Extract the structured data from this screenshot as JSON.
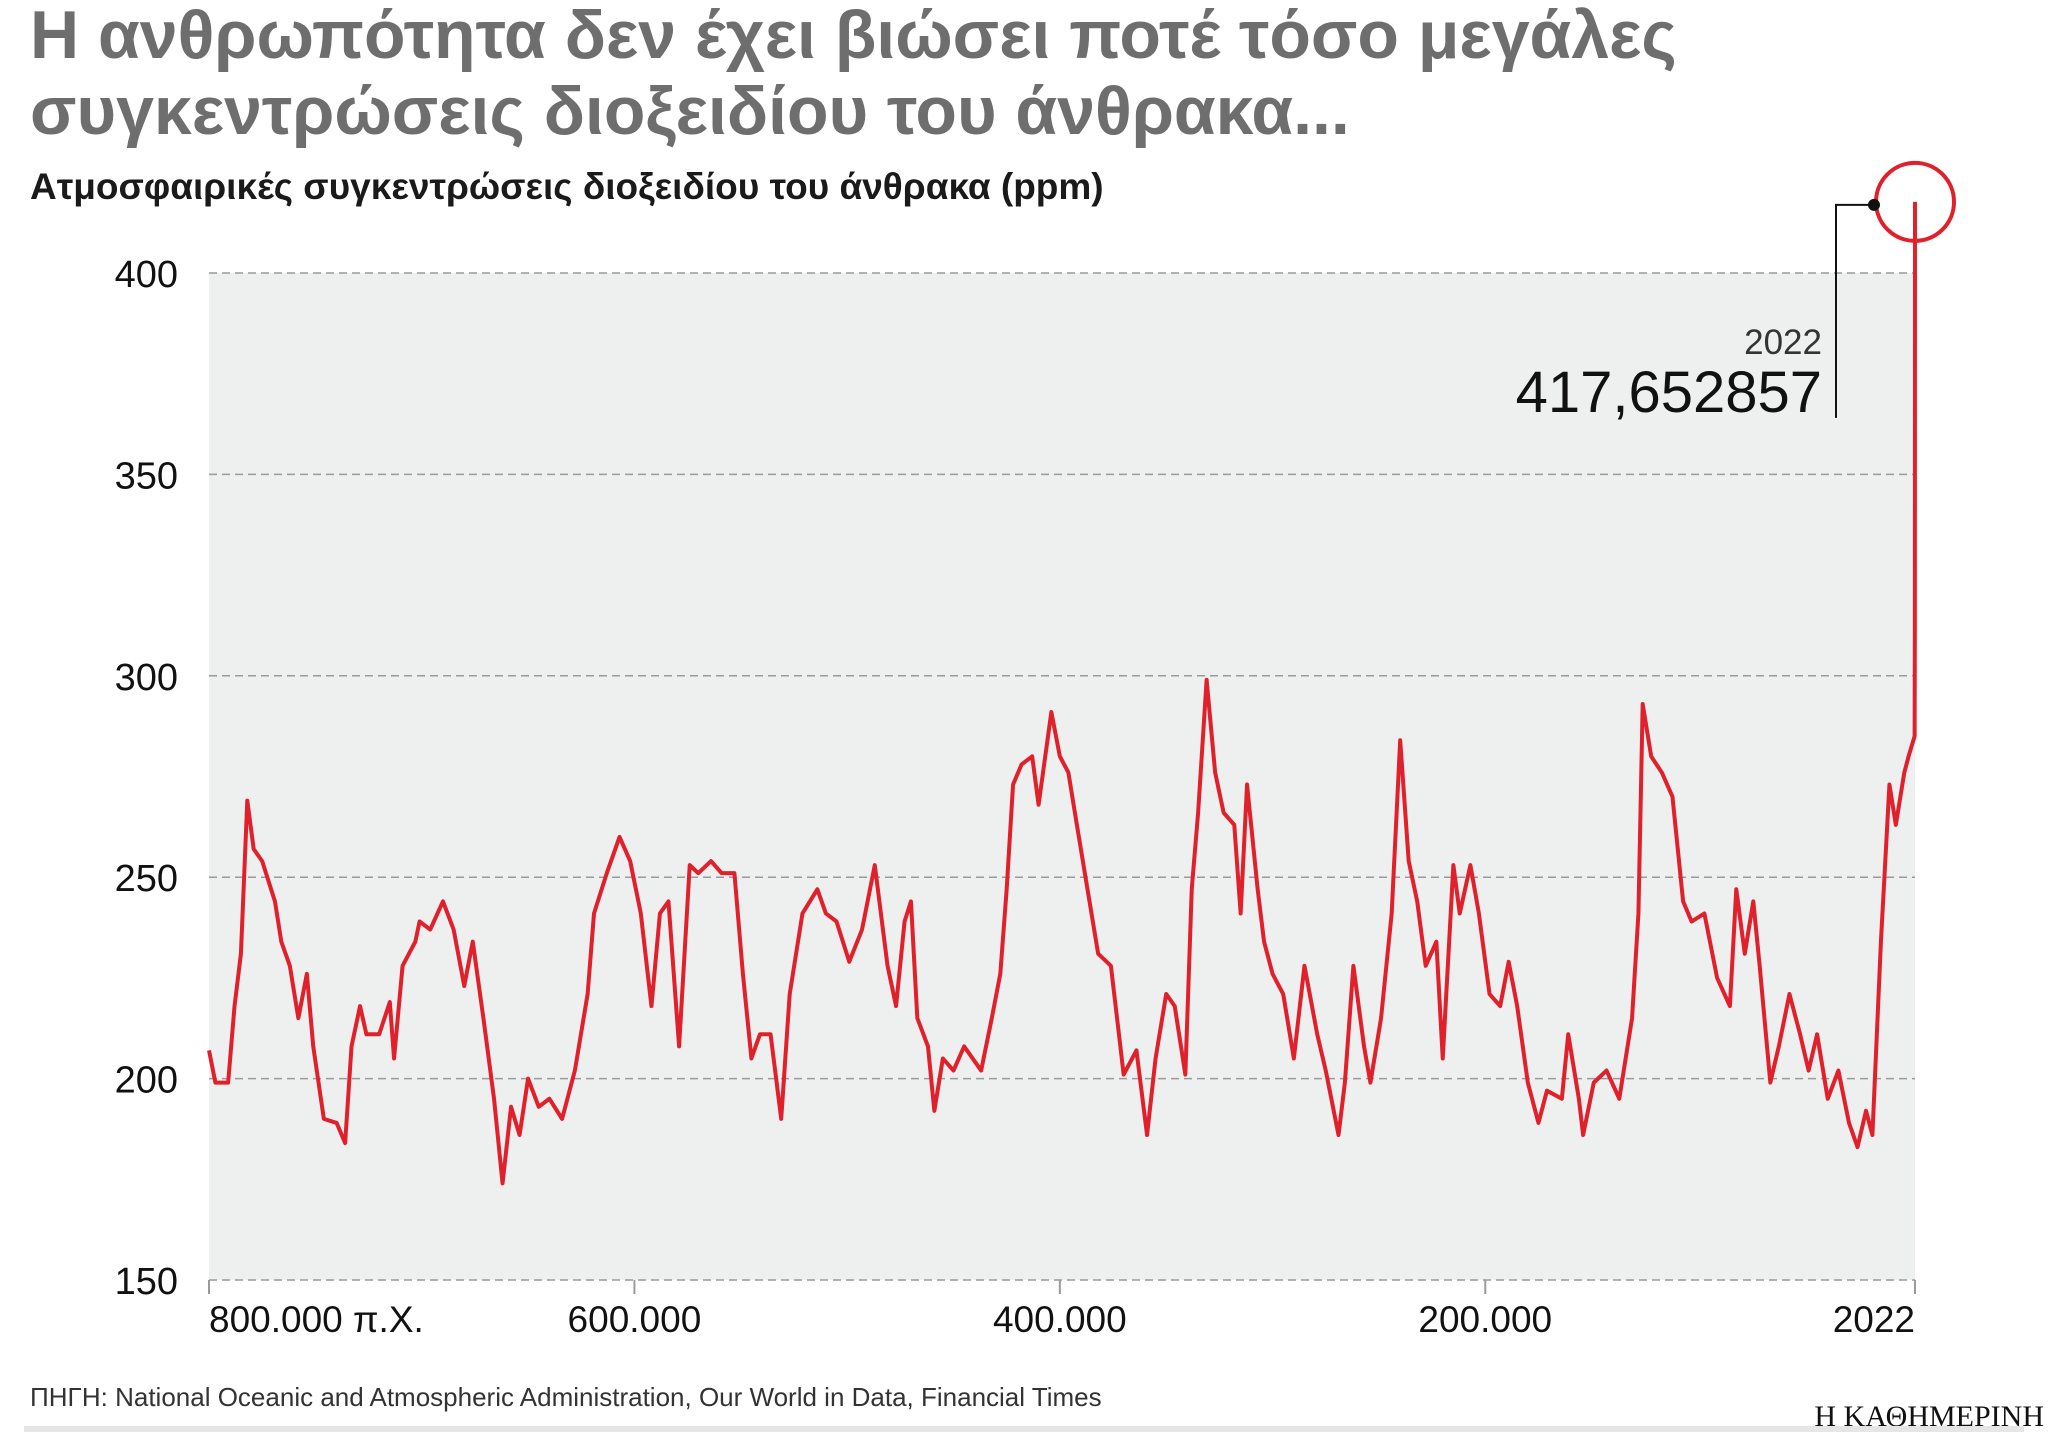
{
  "chart_data": {
    "type": "line",
    "title": [
      "Η ανθρωπότητα δεν έχει βιώσει ποτέ τόσο μεγάλες",
      "συγκεντρώσεις διοξειδίου του άνθρακα..."
    ],
    "subtitle": "Ατμοσφαιρικές συγκεντρώσεις διοξειδίου του άνθρακα (ppm)",
    "source": "ΠΗΓΗ: National Oceanic and Atmospheric Administration, Our World in Data, Financial Times",
    "brand": "Η ΚΑΘΗΜΕΡΙΝΗ",
    "color": "#e0202a",
    "grid": true,
    "xlim": [
      -800000,
      2022
    ],
    "ylim": [
      150,
      400
    ],
    "xticks": [
      {
        "value": -800000,
        "label": "800.000 π.Χ."
      },
      {
        "value": -600000,
        "label": "600.000"
      },
      {
        "value": -400000,
        "label": "400.000"
      },
      {
        "value": -200000,
        "label": "200.000"
      },
      2022
    ],
    "yticks": [
      150,
      200,
      250,
      300,
      350,
      400
    ],
    "annotation": {
      "x": 2022,
      "y": 417.652857,
      "label_top": "2022",
      "label": "417,652857"
    },
    "x": [
      -800000,
      -797000,
      -791000,
      -788000,
      -785000,
      -782000,
      -779000,
      -775000,
      -769000,
      -766000,
      -762000,
      -758000,
      -754000,
      -751000,
      -746000,
      -740000,
      -736000,
      -733000,
      -729000,
      -726000,
      -720000,
      -715000,
      -713000,
      -709000,
      -703000,
      -701000,
      -696000,
      -690000,
      -685000,
      -680000,
      -676000,
      -671000,
      -666000,
      -662000,
      -658000,
      -654000,
      -650000,
      -645000,
      -640000,
      -634000,
      -628000,
      -622000,
      -619000,
      -613000,
      -607000,
      -602000,
      -597000,
      -592000,
      -588000,
      -584000,
      -579000,
      -574000,
      -570000,
      -564000,
      -559000,
      -553000,
      -549000,
      -545000,
      -541000,
      -536000,
      -531000,
      -527000,
      -521000,
      -514000,
      -510000,
      -505000,
      -499000,
      -493000,
      -487000,
      -481000,
      -477000,
      -473000,
      -470000,
      -467000,
      -462000,
      -459000,
      -455000,
      -450000,
      -445000,
      -441000,
      -437000,
      -432000,
      -428000,
      -425000,
      -422000,
      -418000,
      -413000,
      -410000,
      -404000,
      -400000,
      -396000,
      -392000,
      -387000,
      -382000,
      -376000,
      -370000,
      -364000,
      -359000,
      -355000,
      -350000,
      -346000,
      -341000,
      -338000,
      -335000,
      -331000,
      -327000,
      -323000,
      -318000,
      -315000,
      -312000,
      -307000,
      -304000,
      -300000,
      -295000,
      -290000,
      -285000,
      -279000,
      -275000,
      -269000,
      -266000,
      -262000,
      -257000,
      -254000,
      -249000,
      -244000,
      -240000,
      -236000,
      -232000,
      -228000,
      -223000,
      -220000,
      -215000,
      -212000,
      -207000,
      -203000,
      -198000,
      -193000,
      -189000,
      -185000,
      -180000,
      -175000,
      -171000,
      -164000,
      -161000,
      -156000,
      -154000,
      -149000,
      -143000,
      -137000,
      -131000,
      -128000,
      -126000,
      -122000,
      -117000,
      -112000,
      -107000,
      -103000,
      -97000,
      -91000,
      -85000,
      -82000,
      -78000,
      -74000,
      -71000,
      -66000,
      -62000,
      -57000,
      -52000,
      -48000,
      -44000,
      -39000,
      -34000,
      -29000,
      -25000,
      -21000,
      -18000,
      -14000,
      -10000,
      -7000,
      -3000,
      -1000,
      1850,
      1950,
      2000,
      2022
    ],
    "values": [
      207,
      199,
      199,
      218,
      231,
      269,
      257,
      254,
      244,
      234,
      228,
      215,
      226,
      208,
      190,
      189,
      184,
      208,
      218,
      211,
      211,
      219,
      205,
      228,
      234,
      239,
      237,
      244,
      237,
      223,
      234,
      215,
      195,
      174,
      193,
      186,
      200,
      193,
      195,
      190,
      202,
      221,
      241,
      251,
      260,
      254,
      241,
      218,
      241,
      244,
      208,
      253,
      251,
      254,
      251,
      251,
      226,
      205,
      211,
      211,
      190,
      221,
      241,
      247,
      241,
      239,
      229,
      237,
      253,
      228,
      218,
      239,
      244,
      215,
      208,
      192,
      205,
      202,
      208,
      205,
      202,
      215,
      226,
      247,
      273,
      278,
      280,
      268,
      291,
      280,
      276,
      263,
      247,
      231,
      228,
      201,
      207,
      186,
      205,
      221,
      218,
      201,
      247,
      266,
      299,
      276,
      266,
      263,
      241,
      273,
      247,
      234,
      226,
      221,
      205,
      228,
      211,
      202,
      186,
      199,
      228,
      208,
      199,
      215,
      241,
      284,
      254,
      244,
      228,
      234,
      205,
      253,
      241,
      253,
      241,
      221,
      218,
      229,
      218,
      199,
      189,
      197,
      195,
      211,
      195,
      186,
      199,
      202,
      195,
      215,
      241,
      293,
      280,
      276,
      270,
      244,
      239,
      241,
      225,
      218,
      247,
      231,
      244,
      228,
      199,
      208,
      221,
      211,
      202,
      211,
      195,
      202,
      189,
      183,
      192,
      186,
      234,
      273,
      263,
      276,
      280,
      285,
      311,
      369,
      417.652857
    ]
  }
}
